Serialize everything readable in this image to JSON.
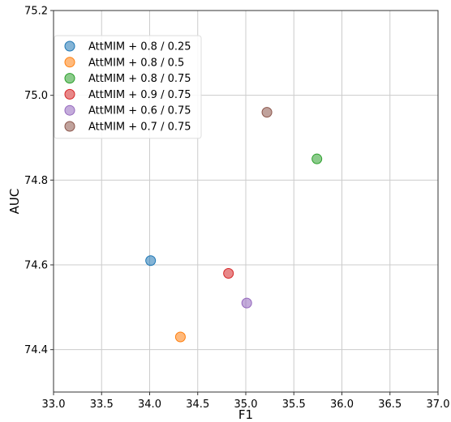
{
  "chart_data": {
    "type": "scatter",
    "title": "",
    "xlabel": "F1",
    "ylabel": "AUC",
    "xlim": [
      33.0,
      37.0
    ],
    "ylim": [
      74.3,
      75.2
    ],
    "xticks": [
      "33.0",
      "33.5",
      "34.0",
      "34.5",
      "35.0",
      "35.5",
      "36.0",
      "36.5",
      "37.0"
    ],
    "yticks": [
      "74.4",
      "74.6",
      "74.8",
      "75.0",
      "75.2"
    ],
    "grid": true,
    "legend_position": "upper-left",
    "series": [
      {
        "name": "AttMIM + 0.8 / 0.25",
        "color": "#1f77b4",
        "x": [
          34.01
        ],
        "y": [
          74.61
        ]
      },
      {
        "name": "AttMIM + 0.8 / 0.5",
        "color": "#ff7f0e",
        "x": [
          34.32
        ],
        "y": [
          74.43
        ]
      },
      {
        "name": "AttMIM + 0.8 / 0.75",
        "color": "#2ca02c",
        "x": [
          35.74
        ],
        "y": [
          74.85
        ]
      },
      {
        "name": "AttMIM + 0.9 / 0.75",
        "color": "#d62728",
        "x": [
          34.82
        ],
        "y": [
          74.58
        ]
      },
      {
        "name": "AttMIM + 0.6 / 0.75",
        "color": "#9467bd",
        "x": [
          35.01
        ],
        "y": [
          74.51
        ]
      },
      {
        "name": "AttMIM + 0.7 / 0.75",
        "color": "#8c564b",
        "x": [
          35.22
        ],
        "y": [
          74.96
        ]
      }
    ]
  }
}
